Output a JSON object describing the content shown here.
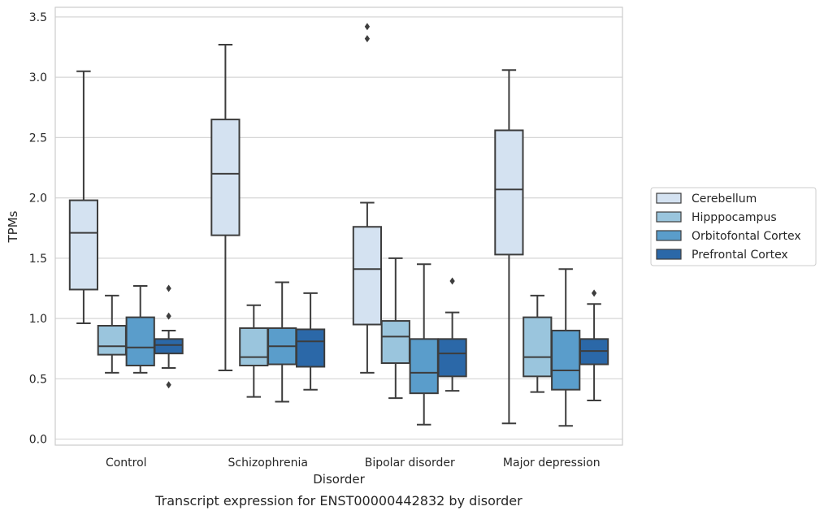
{
  "chart_data": {
    "type": "box",
    "caption": "Transcript expression for ENST00000442832 by disorder",
    "xlabel": "Disorder",
    "ylabel": "TPMs",
    "ylim": [
      -0.05,
      3.58
    ],
    "yticks": [
      "0.0",
      "0.5",
      "1.0",
      "1.5",
      "2.0",
      "2.5",
      "3.0",
      "3.5"
    ],
    "grid": true,
    "legend_position": "right",
    "categories": [
      "Control",
      "Schizophrenia",
      "Bipolar disorder",
      "Major depression"
    ],
    "series": [
      {
        "name": "Cerebellum",
        "color": "#d4e2f1",
        "boxes": [
          {
            "whisker_low": 0.96,
            "q1": 1.24,
            "median": 1.71,
            "q3": 1.98,
            "whisker_high": 3.05,
            "outliers": []
          },
          {
            "whisker_low": 0.57,
            "q1": 1.69,
            "median": 2.2,
            "q3": 2.65,
            "whisker_high": 3.27,
            "outliers": []
          },
          {
            "whisker_low": 0.55,
            "q1": 0.95,
            "median": 1.41,
            "q3": 1.76,
            "whisker_high": 1.96,
            "outliers": [
              3.42,
              3.32
            ]
          },
          {
            "whisker_low": 0.13,
            "q1": 1.53,
            "median": 2.07,
            "q3": 2.56,
            "whisker_high": 3.06,
            "outliers": []
          }
        ]
      },
      {
        "name": "Hipppocampus",
        "color": "#9ac5dd",
        "boxes": [
          {
            "whisker_low": 0.55,
            "q1": 0.7,
            "median": 0.77,
            "q3": 0.94,
            "whisker_high": 1.19,
            "outliers": []
          },
          {
            "whisker_low": 0.35,
            "q1": 0.61,
            "median": 0.68,
            "q3": 0.92,
            "whisker_high": 1.11,
            "outliers": []
          },
          {
            "whisker_low": 0.34,
            "q1": 0.63,
            "median": 0.85,
            "q3": 0.98,
            "whisker_high": 1.5,
            "outliers": []
          },
          {
            "whisker_low": 0.39,
            "q1": 0.52,
            "median": 0.68,
            "q3": 1.01,
            "whisker_high": 1.19,
            "outliers": []
          }
        ]
      },
      {
        "name": "Orbitofontal Cortex",
        "color": "#5a9dcb",
        "boxes": [
          {
            "whisker_low": 0.55,
            "q1": 0.61,
            "median": 0.76,
            "q3": 1.01,
            "whisker_high": 1.27,
            "outliers": []
          },
          {
            "whisker_low": 0.31,
            "q1": 0.62,
            "median": 0.77,
            "q3": 0.92,
            "whisker_high": 1.3,
            "outliers": []
          },
          {
            "whisker_low": 0.12,
            "q1": 0.38,
            "median": 0.55,
            "q3": 0.83,
            "whisker_high": 1.45,
            "outliers": []
          },
          {
            "whisker_low": 0.11,
            "q1": 0.41,
            "median": 0.57,
            "q3": 0.9,
            "whisker_high": 1.41,
            "outliers": []
          }
        ]
      },
      {
        "name": "Prefrontal Cortex",
        "color": "#2b68a8",
        "boxes": [
          {
            "whisker_low": 0.59,
            "q1": 0.71,
            "median": 0.78,
            "q3": 0.83,
            "whisker_high": 0.9,
            "outliers": [
              1.25,
              1.02,
              0.45
            ]
          },
          {
            "whisker_low": 0.41,
            "q1": 0.6,
            "median": 0.81,
            "q3": 0.91,
            "whisker_high": 1.21,
            "outliers": []
          },
          {
            "whisker_low": 0.4,
            "q1": 0.52,
            "median": 0.71,
            "q3": 0.83,
            "whisker_high": 1.05,
            "outliers": [
              1.31
            ]
          },
          {
            "whisker_low": 0.32,
            "q1": 0.62,
            "median": 0.73,
            "q3": 0.83,
            "whisker_high": 1.12,
            "outliers": [
              1.21
            ]
          }
        ]
      }
    ]
  }
}
